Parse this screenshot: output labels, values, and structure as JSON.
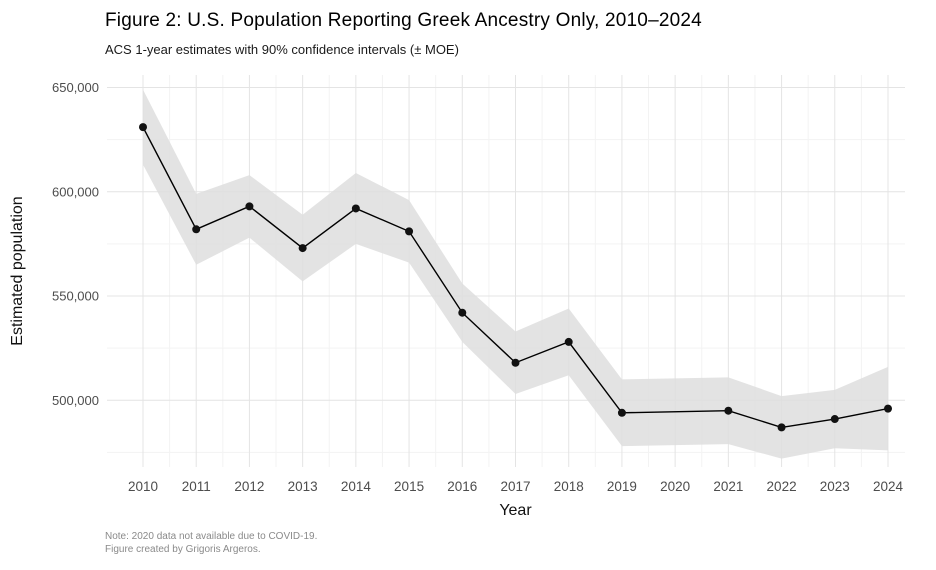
{
  "header": {
    "title": "Figure 2: U.S. Population Reporting Greek Ancestry Only, 2010–2024",
    "subtitle": "ACS 1-year estimates with 90% confidence intervals (± MOE)"
  },
  "footer": {
    "note_line1": "Note: 2020 data not available due to COVID-19.",
    "note_line2": "Figure created by Grigoris Argeros."
  },
  "chart_data": {
    "type": "line",
    "title": "Figure 2: U.S. Population Reporting Greek Ancestry Only, 2010–2024",
    "subtitle": "ACS 1-year estimates with 90% confidence intervals (± MOE)",
    "xlabel": "Year",
    "ylabel": "Estimated population",
    "x": [
      2010,
      2011,
      2012,
      2013,
      2014,
      2015,
      2016,
      2017,
      2018,
      2019,
      2020,
      2021,
      2022,
      2023,
      2024
    ],
    "series": [
      {
        "name": "U.S. population reporting Greek ancestry only",
        "values": [
          631000,
          582000,
          593000,
          573000,
          592000,
          581000,
          542000,
          518000,
          528000,
          494000,
          null,
          495000,
          487000,
          491000,
          496000
        ],
        "moe": [
          18000,
          17000,
          15000,
          16000,
          17000,
          15000,
          14000,
          15000,
          16000,
          16000,
          null,
          16000,
          15000,
          14000,
          20000
        ]
      }
    ],
    "note_2020": "2020 data not available due to COVID-19",
    "ylim": [
      468000,
      656000
    ],
    "yticks": [
      500000,
      550000,
      600000,
      650000
    ],
    "yticks_minor": [
      475000,
      525000,
      575000,
      625000
    ],
    "grid": true,
    "legend": false,
    "colors": {
      "line": "#000000",
      "point": "#111111",
      "ribbon": "#dedede",
      "grid_major": "#e4e4e4",
      "grid_minor": "#f3f3f3",
      "tick_text": "#4d4d4d",
      "background": "#ffffff"
    }
  }
}
